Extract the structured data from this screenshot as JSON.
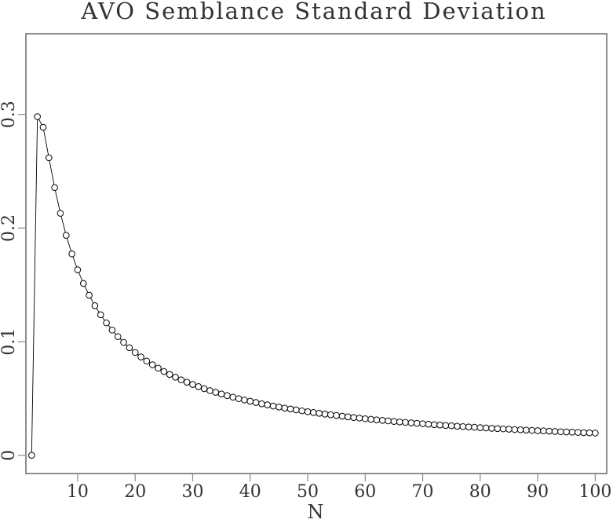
{
  "chart_data": {
    "type": "line",
    "title": "AVO Semblance Standard Deviation",
    "xlabel": "N",
    "ylabel": "",
    "xlim": [
      1,
      102
    ],
    "ylim": [
      -0.016,
      0.371
    ],
    "xticks": [
      "10",
      "20",
      "30",
      "40",
      "50",
      "60",
      "70",
      "80",
      "90",
      "100"
    ],
    "yticks": [
      "0",
      "0.1",
      "0.2",
      "0.3"
    ],
    "grid": false,
    "markers": "open-circle",
    "line_color": "#000000",
    "x": [
      2,
      3,
      4,
      5,
      6,
      7,
      8,
      9,
      10,
      11,
      12,
      13,
      14,
      15,
      16,
      17,
      18,
      19,
      20,
      21,
      22,
      23,
      24,
      25,
      26,
      27,
      28,
      29,
      30,
      31,
      32,
      33,
      34,
      35,
      36,
      37,
      38,
      39,
      40,
      41,
      42,
      43,
      44,
      45,
      46,
      47,
      48,
      49,
      50,
      51,
      52,
      53,
      54,
      55,
      56,
      57,
      58,
      59,
      60,
      61,
      62,
      63,
      64,
      65,
      66,
      67,
      68,
      69,
      70,
      71,
      72,
      73,
      74,
      75,
      76,
      77,
      78,
      79,
      80,
      81,
      82,
      83,
      84,
      85,
      86,
      87,
      88,
      89,
      90,
      91,
      92,
      93,
      94,
      95,
      96,
      97,
      98,
      99,
      100
    ],
    "y": [
      0,
      0.2981,
      0.2887,
      0.2619,
      0.2357,
      0.213,
      0.1936,
      0.1773,
      0.1633,
      0.1513,
      0.1409,
      0.1317,
      0.1237,
      0.1166,
      0.1102,
      0.1045,
      0.0994,
      0.0947,
      0.0905,
      0.0866,
      0.083,
      0.0797,
      0.0767,
      0.0738,
      0.0712,
      0.0688,
      0.0665,
      0.0644,
      0.0624,
      0.0605,
      0.0587,
      0.057,
      0.0555,
      0.054,
      0.0526,
      0.0512,
      0.0499,
      0.0487,
      0.0476,
      0.0465,
      0.0454,
      0.0444,
      0.0434,
      0.0425,
      0.0416,
      0.0408,
      0.04,
      0.0392,
      0.0384,
      0.0377,
      0.037,
      0.0363,
      0.0357,
      0.0351,
      0.0345,
      0.0339,
      0.0333,
      0.0328,
      0.0322,
      0.0317,
      0.0312,
      0.0308,
      0.0303,
      0.0298,
      0.0294,
      0.029,
      0.0286,
      0.0282,
      0.0278,
      0.0274,
      0.027,
      0.0267,
      0.0263,
      0.026,
      0.0256,
      0.0253,
      0.025,
      0.0247,
      0.0244,
      0.0241,
      0.0238,
      0.0235,
      0.0233,
      0.023,
      0.0227,
      0.0225,
      0.0222,
      0.022,
      0.0217,
      0.0215,
      0.0213,
      0.021,
      0.0208,
      0.0206,
      0.0204,
      0.0202,
      0.02,
      0.0198,
      0.0196
    ]
  }
}
